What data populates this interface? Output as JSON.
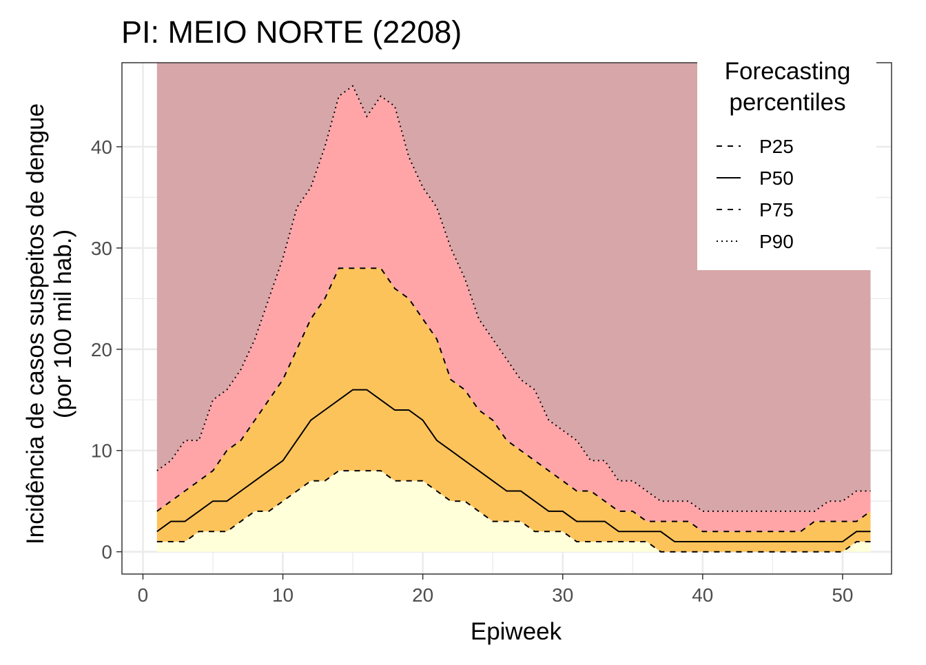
{
  "chart_data": {
    "type": "area",
    "title": "PI: MEIO NORTE (2208)",
    "xlabel": "Epiweek",
    "ylabel_line1": "Incidência de casos suspeitos de dengue",
    "ylabel_line2": "(por 100 mil hab.)",
    "xlim": [
      -1.5,
      53.5
    ],
    "ylim": [
      -2.2,
      48.3
    ],
    "x_ticks": [
      0,
      10,
      20,
      30,
      40,
      50
    ],
    "y_ticks": [
      0,
      10,
      20,
      30,
      40
    ],
    "grid": true,
    "legend": {
      "title_line1": "Forecasting",
      "title_line2": "percentiles",
      "placement": "top-right",
      "entries": [
        {
          "label": "P25",
          "style": "dashed"
        },
        {
          "label": "P50",
          "style": "solid"
        },
        {
          "label": "P75",
          "style": "dashed"
        },
        {
          "label": "P90",
          "style": "dotted"
        }
      ]
    },
    "band_colors": {
      "below_p25": "#ffffd9",
      "p25_p75": "#fdc35b",
      "p75_p90": "#ffa5a8",
      "above_p90": "#d7a6a8"
    },
    "top_band_max": 48.3,
    "x": [
      1,
      2,
      3,
      4,
      5,
      6,
      7,
      8,
      9,
      10,
      11,
      12,
      13,
      14,
      15,
      16,
      17,
      18,
      19,
      20,
      21,
      22,
      23,
      24,
      25,
      26,
      27,
      28,
      29,
      30,
      31,
      32,
      33,
      34,
      35,
      36,
      37,
      38,
      39,
      40,
      41,
      42,
      43,
      44,
      45,
      46,
      47,
      48,
      49,
      50,
      51,
      52
    ],
    "series": [
      {
        "name": "P25",
        "values": [
          1,
          1,
          1,
          2,
          2,
          2,
          3,
          4,
          4,
          5,
          6,
          7,
          7,
          8,
          8,
          8,
          8,
          7,
          7,
          7,
          6,
          5,
          5,
          4,
          3,
          3,
          3,
          2,
          2,
          2,
          1,
          1,
          1,
          1,
          1,
          1,
          0,
          0,
          0,
          0,
          0,
          0,
          0,
          0,
          0,
          0,
          0,
          0,
          0,
          0,
          1,
          1
        ]
      },
      {
        "name": "P50",
        "values": [
          2,
          3,
          3,
          4,
          5,
          5,
          6,
          7,
          8,
          9,
          11,
          13,
          14,
          15,
          16,
          16,
          15,
          14,
          14,
          13,
          11,
          10,
          9,
          8,
          7,
          6,
          6,
          5,
          4,
          4,
          3,
          3,
          3,
          2,
          2,
          2,
          2,
          1,
          1,
          1,
          1,
          1,
          1,
          1,
          1,
          1,
          1,
          1,
          1,
          1,
          2,
          2
        ]
      },
      {
        "name": "P75",
        "values": [
          4,
          5,
          6,
          7,
          8,
          10,
          11,
          13,
          15,
          17,
          20,
          23,
          25,
          28,
          28,
          28,
          28,
          26,
          25,
          23,
          21,
          17,
          16,
          14,
          13,
          11,
          10,
          9,
          8,
          7,
          6,
          6,
          5,
          4,
          4,
          3,
          3,
          3,
          3,
          2,
          2,
          2,
          2,
          2,
          2,
          2,
          2,
          3,
          3,
          3,
          3,
          4
        ]
      },
      {
        "name": "P90",
        "values": [
          8,
          9,
          11,
          11,
          15,
          16,
          18,
          21,
          25,
          29,
          34,
          36,
          40,
          45,
          46,
          43,
          45,
          44,
          39,
          36,
          34,
          30,
          27,
          23,
          21,
          19,
          17,
          16,
          13,
          12,
          11,
          9,
          9,
          7,
          7,
          6,
          5,
          5,
          5,
          4,
          4,
          4,
          4,
          4,
          4,
          4,
          4,
          4,
          5,
          5,
          6,
          6
        ]
      }
    ]
  }
}
